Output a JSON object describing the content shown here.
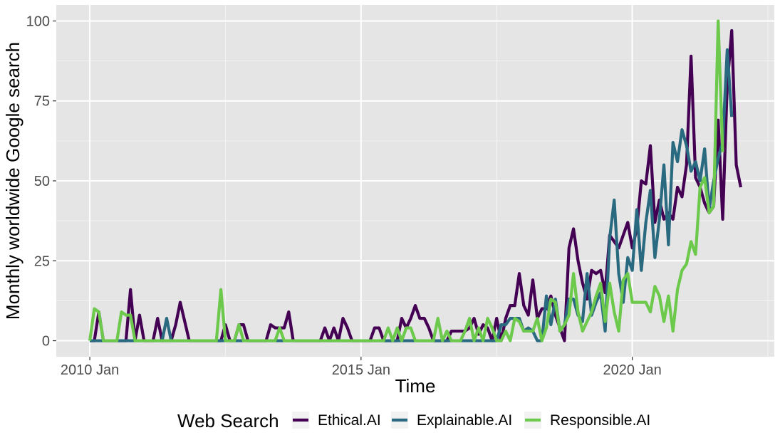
{
  "chart_data": {
    "type": "line",
    "xlabel": "Time",
    "ylabel": "Monthly worldwide Google search",
    "ylim": [
      -5,
      105
    ],
    "x_start": "2010-01",
    "x_step": "month",
    "yticks": [
      0,
      25,
      50,
      75,
      100
    ],
    "xticks": [
      {
        "date": "2010-01",
        "label": "2010 Jan"
      },
      {
        "date": "2015-01",
        "label": "2015 Jan"
      },
      {
        "date": "2020-01",
        "label": "2020 Jan"
      }
    ],
    "grid": true,
    "legend": {
      "title": "Web Search",
      "position": "bottom"
    },
    "series": [
      {
        "name": "Ethical.AI",
        "color": "#440154",
        "values": [
          0,
          0,
          9,
          0,
          0,
          0,
          0,
          0,
          0,
          16,
          0,
          8,
          0,
          0,
          0,
          7,
          0,
          0,
          0,
          5,
          12,
          6,
          0,
          0,
          0,
          0,
          0,
          0,
          0,
          0,
          5,
          0,
          0,
          5,
          5,
          0,
          0,
          0,
          0,
          0,
          5,
          4,
          4,
          4,
          9,
          0,
          0,
          0,
          0,
          0,
          0,
          0,
          4,
          0,
          4,
          0,
          7,
          4,
          0,
          0,
          0,
          0,
          0,
          4,
          4,
          0,
          0,
          0,
          0,
          7,
          4,
          7,
          11,
          7,
          7,
          4,
          0,
          0,
          0,
          0,
          3,
          3,
          3,
          3,
          4,
          7,
          2,
          5,
          4,
          0,
          7,
          0,
          7,
          11,
          11,
          21,
          11,
          8,
          19,
          7,
          10,
          10,
          14,
          8,
          4,
          0,
          29,
          35,
          25,
          18,
          13,
          22,
          21,
          22,
          15,
          33,
          31,
          29,
          33,
          37,
          29,
          35,
          50,
          49,
          61,
          37,
          44,
          38,
          40,
          38,
          48,
          45,
          55,
          89,
          51,
          48,
          43,
          40,
          42,
          69,
          38,
          80,
          97,
          55,
          48
        ]
      },
      {
        "name": "Explainable.AI",
        "color": "#2A6A80",
        "values": [
          0,
          0,
          0,
          0,
          0,
          0,
          0,
          0,
          0,
          0,
          0,
          0,
          0,
          0,
          0,
          0,
          0,
          7,
          0,
          0,
          0,
          0,
          0,
          0,
          0,
          0,
          0,
          0,
          0,
          0,
          0,
          0,
          0,
          0,
          0,
          0,
          0,
          0,
          0,
          0,
          0,
          0,
          0,
          0,
          0,
          0,
          0,
          0,
          0,
          0,
          0,
          0,
          0,
          0,
          0,
          0,
          0,
          0,
          0,
          0,
          0,
          0,
          0,
          0,
          0,
          0,
          0,
          0,
          0,
          0,
          0,
          0,
          0,
          0,
          0,
          0,
          0,
          0,
          0,
          0,
          0,
          0,
          0,
          0,
          0,
          0,
          0,
          0,
          0,
          0,
          0,
          5,
          5,
          7,
          7,
          7,
          3,
          4,
          3,
          0,
          0,
          14,
          5,
          13,
          3,
          5,
          13,
          13,
          8,
          6,
          21,
          8,
          12,
          15,
          3,
          32,
          44,
          21,
          12,
          26,
          22,
          41,
          22,
          37,
          47,
          26,
          38,
          55,
          30,
          62,
          56,
          66,
          61,
          53,
          56,
          50,
          60,
          41,
          50,
          57,
          62,
          91,
          70
        ]
      },
      {
        "name": "Responsible.AI",
        "color": "#6CC94C",
        "values": [
          0,
          10,
          9,
          0,
          0,
          0,
          0,
          9,
          8,
          8,
          0,
          0,
          0,
          0,
          0,
          0,
          0,
          0,
          0,
          0,
          0,
          0,
          0,
          0,
          0,
          0,
          0,
          0,
          0,
          16,
          0,
          0,
          0,
          5,
          0,
          0,
          0,
          0,
          0,
          0,
          0,
          0,
          4,
          0,
          0,
          0,
          0,
          0,
          0,
          0,
          0,
          0,
          0,
          0,
          0,
          0,
          0,
          0,
          0,
          0,
          0,
          0,
          0,
          0,
          0,
          0,
          4,
          0,
          4,
          0,
          4,
          4,
          0,
          0,
          0,
          0,
          0,
          7,
          0,
          3,
          0,
          0,
          0,
          3,
          7,
          0,
          4,
          0,
          7,
          4,
          0,
          0,
          3,
          0,
          7,
          6,
          3,
          3,
          3,
          7,
          0,
          4,
          13,
          12,
          3,
          5,
          8,
          21,
          9,
          3,
          6,
          9,
          14,
          18,
          6,
          18,
          9,
          3,
          19,
          21,
          12,
          12,
          12,
          12,
          9,
          17,
          14,
          6,
          14,
          3,
          16,
          22,
          24,
          31,
          27,
          48,
          51,
          40,
          42,
          100,
          59
        ]
      }
    ]
  }
}
